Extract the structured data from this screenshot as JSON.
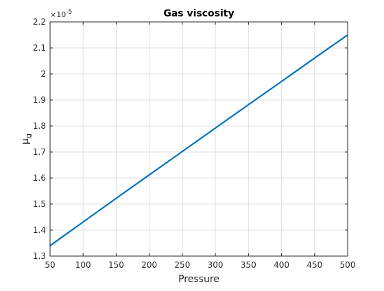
{
  "chart_data": {
    "type": "line",
    "title": "Gas viscosity",
    "xlabel": "Pressure",
    "ylabel": {
      "base": "μ",
      "subscript": "g"
    },
    "y_exponent": {
      "base": "×10",
      "power": "-5"
    },
    "xlim": [
      50,
      500
    ],
    "ylim": [
      1.3,
      2.2
    ],
    "x_ticks": [
      50,
      100,
      150,
      200,
      250,
      300,
      350,
      400,
      450,
      500
    ],
    "y_ticks": [
      1.3,
      1.4,
      1.5,
      1.6,
      1.7,
      1.8,
      1.9,
      2,
      2.1,
      2.2
    ],
    "x_tick_labels": [
      "50",
      "100",
      "150",
      "200",
      "250",
      "300",
      "350",
      "400",
      "450",
      "500"
    ],
    "y_tick_labels": [
      "1.3",
      "1.4",
      "1.5",
      "1.6",
      "1.7",
      "1.8",
      "1.9",
      "2",
      "2.1",
      "2.2"
    ],
    "grid": true,
    "series": [
      {
        "color": "#0072BD",
        "x": [
          50,
          100,
          150,
          200,
          250,
          300,
          350,
          400,
          450,
          500
        ],
        "y": [
          1.34,
          1.431,
          1.522,
          1.612,
          1.702,
          1.792,
          1.882,
          1.971,
          2.061,
          2.15
        ]
      }
    ]
  }
}
